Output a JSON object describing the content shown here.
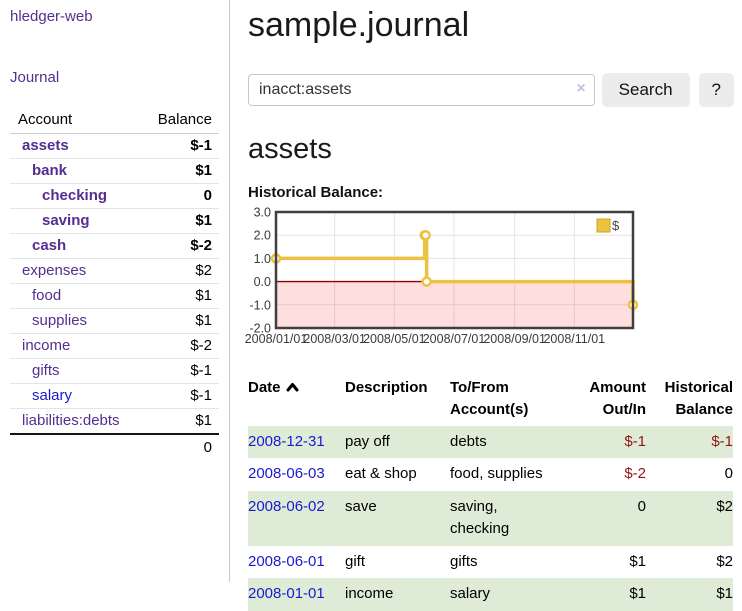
{
  "app": {
    "brand": "hledger-web"
  },
  "nav": {
    "journal": "Journal"
  },
  "sidebar": {
    "columns": {
      "account": "Account",
      "balance": "Balance"
    },
    "rows": [
      {
        "name": "assets",
        "balance": "$-1",
        "depth": 1,
        "bold": true,
        "name_color": "purple",
        "balance_color": "negstrong"
      },
      {
        "name": "bank",
        "balance": "$1",
        "depth": 2,
        "bold": true,
        "name_color": "purple",
        "balance_color": "pos"
      },
      {
        "name": "checking",
        "balance": "0",
        "depth": 3,
        "bold": true,
        "name_color": "purple",
        "balance_color": "pos"
      },
      {
        "name": "saving",
        "balance": "$1",
        "depth": 3,
        "bold": true,
        "name_color": "purple",
        "balance_color": "pos"
      },
      {
        "name": "cash",
        "balance": "$-2",
        "depth": 2,
        "bold": true,
        "name_color": "purple",
        "balance_color": "negstrong"
      },
      {
        "name": "expenses",
        "balance": "$2",
        "depth": 1,
        "bold": false,
        "name_color": "purple",
        "balance_color": "pos"
      },
      {
        "name": "food",
        "balance": "$1",
        "depth": 2,
        "bold": false,
        "name_color": "purple",
        "balance_color": "pos"
      },
      {
        "name": "supplies",
        "balance": "$1",
        "depth": 2,
        "bold": false,
        "name_color": "purple",
        "balance_color": "pos"
      },
      {
        "name": "income",
        "balance": "$-2",
        "depth": 1,
        "bold": false,
        "name_color": "purple",
        "balance_color": "negsoft"
      },
      {
        "name": "gifts",
        "balance": "$-1",
        "depth": 2,
        "bold": false,
        "name_color": "purple",
        "balance_color": "negsoft"
      },
      {
        "name": "salary",
        "balance": "$-1",
        "depth": 2,
        "bold": false,
        "name_color": "blue",
        "balance_color": "negsoft"
      },
      {
        "name": "liabilities:debts",
        "balance": "$1",
        "depth": 1,
        "bold": false,
        "name_color": "purple",
        "balance_color": "pos"
      }
    ],
    "total": "0"
  },
  "main": {
    "title": "sample.journal",
    "search": {
      "value": "inacct:assets",
      "clear": "×",
      "search_button": "Search",
      "help_button": "?"
    },
    "account_heading": "assets",
    "chart_title": "Historical Balance:"
  },
  "chart_data": {
    "type": "line",
    "step": true,
    "title": "Historical Balance",
    "series": [
      {
        "name": "$",
        "color": "#edc240",
        "points": [
          [
            "2008-01-01",
            1
          ],
          [
            "2008-06-01",
            2
          ],
          [
            "2008-06-02",
            2
          ],
          [
            "2008-06-03",
            0
          ],
          [
            "2008-12-31",
            -1
          ]
        ]
      }
    ],
    "xlim": [
      "2008-01-01",
      "2008-12-31"
    ],
    "ylim": [
      -2.0,
      3.0
    ],
    "x_ticks": [
      {
        "date": "2008-01-01",
        "label": "2008/01/01"
      },
      {
        "date": "2008-03-01",
        "label": "2008/03/01"
      },
      {
        "date": "2008-05-01",
        "label": "2008/05/01"
      },
      {
        "date": "2008-07-01",
        "label": "2008/07/01"
      },
      {
        "date": "2008-09-01",
        "label": "2008/09/01"
      },
      {
        "date": "2008-11-01",
        "label": "2008/11/01"
      }
    ],
    "y_ticks": [
      {
        "v": 3,
        "label": "3.0"
      },
      {
        "v": 2,
        "label": "2.0"
      },
      {
        "v": 1,
        "label": "1.0"
      },
      {
        "v": 0,
        "label": "0.0"
      },
      {
        "v": -1,
        "label": "-1.0"
      },
      {
        "v": -2,
        "label": "-2.0"
      }
    ],
    "legend": {
      "label": "$",
      "position": "top-right"
    },
    "grid": true,
    "negative_region_color": "rgba(255,0,0,0.13)",
    "zero_line_color": "#8b0000"
  },
  "register_table": {
    "headers": {
      "date": "Date",
      "description": "Description",
      "accounts": "To/From Account(s)",
      "amount": "Amount Out/In",
      "balance": "Historical Balance"
    },
    "rows": [
      {
        "date": "2008-12-31",
        "description": "pay off",
        "accounts": "debts",
        "amount": "$-1",
        "amount_neg": true,
        "balance": "$-1",
        "balance_neg": true
      },
      {
        "date": "2008-06-03",
        "description": "eat & shop",
        "accounts": "food, supplies",
        "amount": "$-2",
        "amount_neg": true,
        "balance": "0",
        "balance_neg": false
      },
      {
        "date": "2008-06-02",
        "description": "save",
        "accounts": "saving, checking",
        "amount": "0",
        "amount_neg": false,
        "balance": "$2",
        "balance_neg": false
      },
      {
        "date": "2008-06-01",
        "description": "gift",
        "accounts": "gifts",
        "amount": "$1",
        "amount_neg": false,
        "balance": "$2",
        "balance_neg": false
      },
      {
        "date": "2008-01-01",
        "description": "income",
        "accounts": "salary",
        "amount": "$1",
        "amount_neg": false,
        "balance": "$1",
        "balance_neg": false
      }
    ]
  },
  "colors": {
    "link_purple": "#552e90",
    "link_blue": "#1a1ace",
    "negative_strong": "#941414",
    "negative_soft": "#bd7b7b",
    "row_green": "#deecd7",
    "chart_line": "#edc240"
  }
}
